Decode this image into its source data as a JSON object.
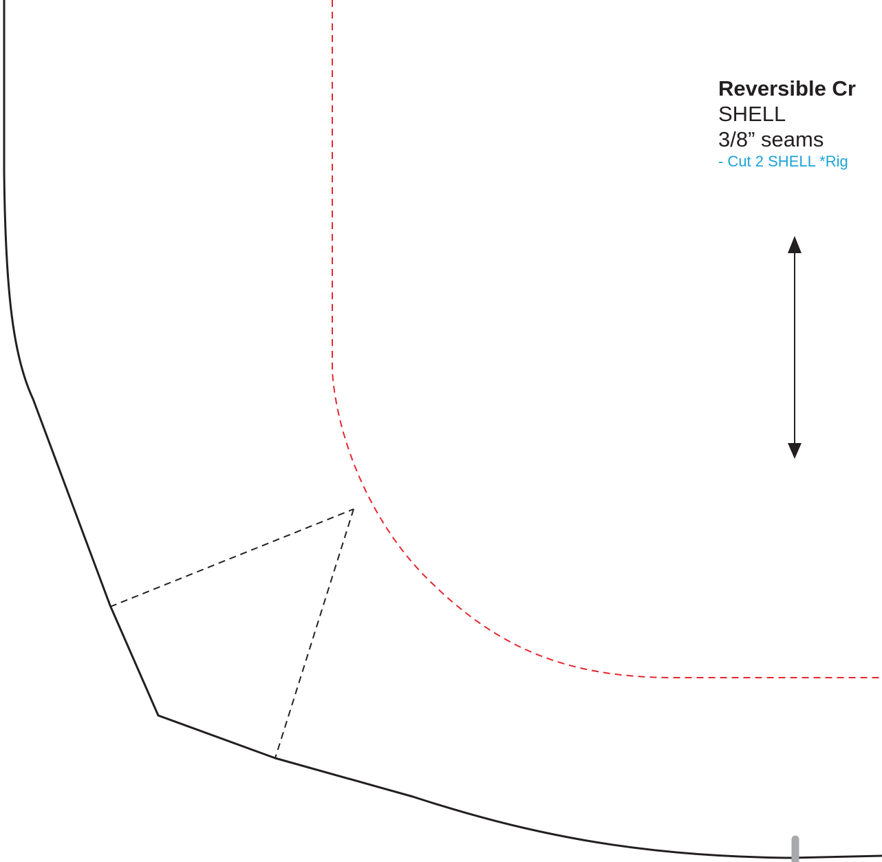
{
  "pattern": {
    "title": "Reversible Cr",
    "piece_name": "SHELL",
    "seam_allowance": "3/8” seams",
    "cut_instruction": "- Cut 2 SHELL *Rig"
  },
  "colors": {
    "outline": "#231f20",
    "stitch_line": "#e4262d",
    "dart_line": "#231f20",
    "cut_note": "#1aa3d9",
    "notch": "#a7a9ac"
  },
  "icons": {
    "grainline": "grainline-arrow-icon",
    "notch": "notch-mark-icon"
  }
}
